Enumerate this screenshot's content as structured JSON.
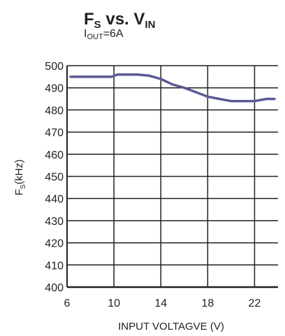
{
  "chart_data": {
    "type": "line",
    "title": {
      "main": "F",
      "main_sub": "S",
      "mid": " vs. V",
      "mid_sub": "IN"
    },
    "subtitle": {
      "main": "I",
      "sub": "OUT",
      "rest": "=6A"
    },
    "xlabel": "INPUT VOLTAGVE (V)",
    "ylabel": {
      "main": "F",
      "sub": "S",
      "rest": "(kHz)"
    },
    "xlim": [
      6,
      24
    ],
    "ylim": [
      400,
      500
    ],
    "x_ticks": [
      6,
      10,
      14,
      18,
      22
    ],
    "y_ticks": [
      400,
      410,
      420,
      430,
      440,
      450,
      460,
      470,
      480,
      490,
      500
    ],
    "x_grid_lines": [
      6,
      10,
      14,
      18,
      22
    ],
    "grid": true,
    "series": [
      {
        "color": "#5a5a93",
        "x": [
          6.3,
          7,
          8,
          9,
          9.8,
          10.3,
          11,
          12,
          13,
          14,
          15,
          16,
          17,
          18,
          19,
          20,
          21,
          22,
          23,
          23.7
        ],
        "y": [
          495,
          495,
          495,
          495,
          495,
          496,
          496,
          496,
          495.5,
          494,
          491.5,
          490,
          488,
          486,
          485,
          484,
          484,
          484,
          485,
          485
        ]
      }
    ]
  }
}
